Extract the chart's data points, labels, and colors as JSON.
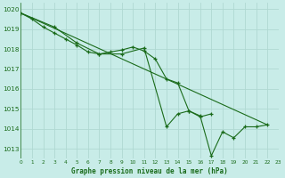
{
  "x_all": [
    0,
    1,
    2,
    3,
    4,
    5,
    6,
    7,
    8,
    9,
    10,
    11,
    12,
    13,
    14,
    15,
    16,
    17,
    18,
    19,
    20,
    21,
    22,
    23
  ],
  "line_detail": {
    "x": [
      0,
      1,
      2,
      3,
      4,
      5,
      6,
      7,
      8,
      9,
      10,
      11,
      12,
      13,
      14,
      15,
      16,
      17
    ],
    "y": [
      1019.8,
      1019.5,
      1019.1,
      1018.8,
      1018.5,
      1018.2,
      1017.85,
      1017.75,
      1017.85,
      1017.95,
      1018.1,
      1017.9,
      1017.5,
      1016.5,
      1016.3,
      1014.9,
      1014.6,
      1014.75
    ]
  },
  "line_smooth": {
    "x": [
      0,
      3,
      5,
      7,
      9,
      11,
      13,
      14,
      15,
      16,
      17,
      18,
      19,
      20,
      21,
      22
    ],
    "y": [
      1019.8,
      1019.1,
      1018.3,
      1017.75,
      1017.75,
      1018.05,
      1014.1,
      1014.75,
      1014.9,
      1014.65,
      1012.65,
      1013.85,
      1013.55,
      1014.1,
      1014.1,
      1014.2
    ]
  },
  "line_trend": {
    "x": [
      0,
      22
    ],
    "y": [
      1019.8,
      1014.2
    ]
  },
  "color": "#1a6b1a",
  "bg_color": "#c8ece8",
  "grid_color": "#b0d8d2",
  "title": "Graphe pression niveau de la mer (hPa)",
  "xlim": [
    0,
    23
  ],
  "ylim": [
    1012.5,
    1020.3
  ],
  "yticks": [
    1013,
    1014,
    1015,
    1016,
    1017,
    1018,
    1019,
    1020
  ],
  "xticks": [
    0,
    1,
    2,
    3,
    4,
    5,
    6,
    7,
    8,
    9,
    10,
    11,
    12,
    13,
    14,
    15,
    16,
    17,
    18,
    19,
    20,
    21,
    22,
    23
  ],
  "xtick_labels": [
    "0",
    "1",
    "2",
    "3",
    "4",
    "5",
    "6",
    "7",
    "8",
    "9",
    "10",
    "11",
    "12",
    "13",
    "14",
    "15",
    "16",
    "17",
    "18",
    "19",
    "20",
    "21",
    "22",
    "23"
  ]
}
